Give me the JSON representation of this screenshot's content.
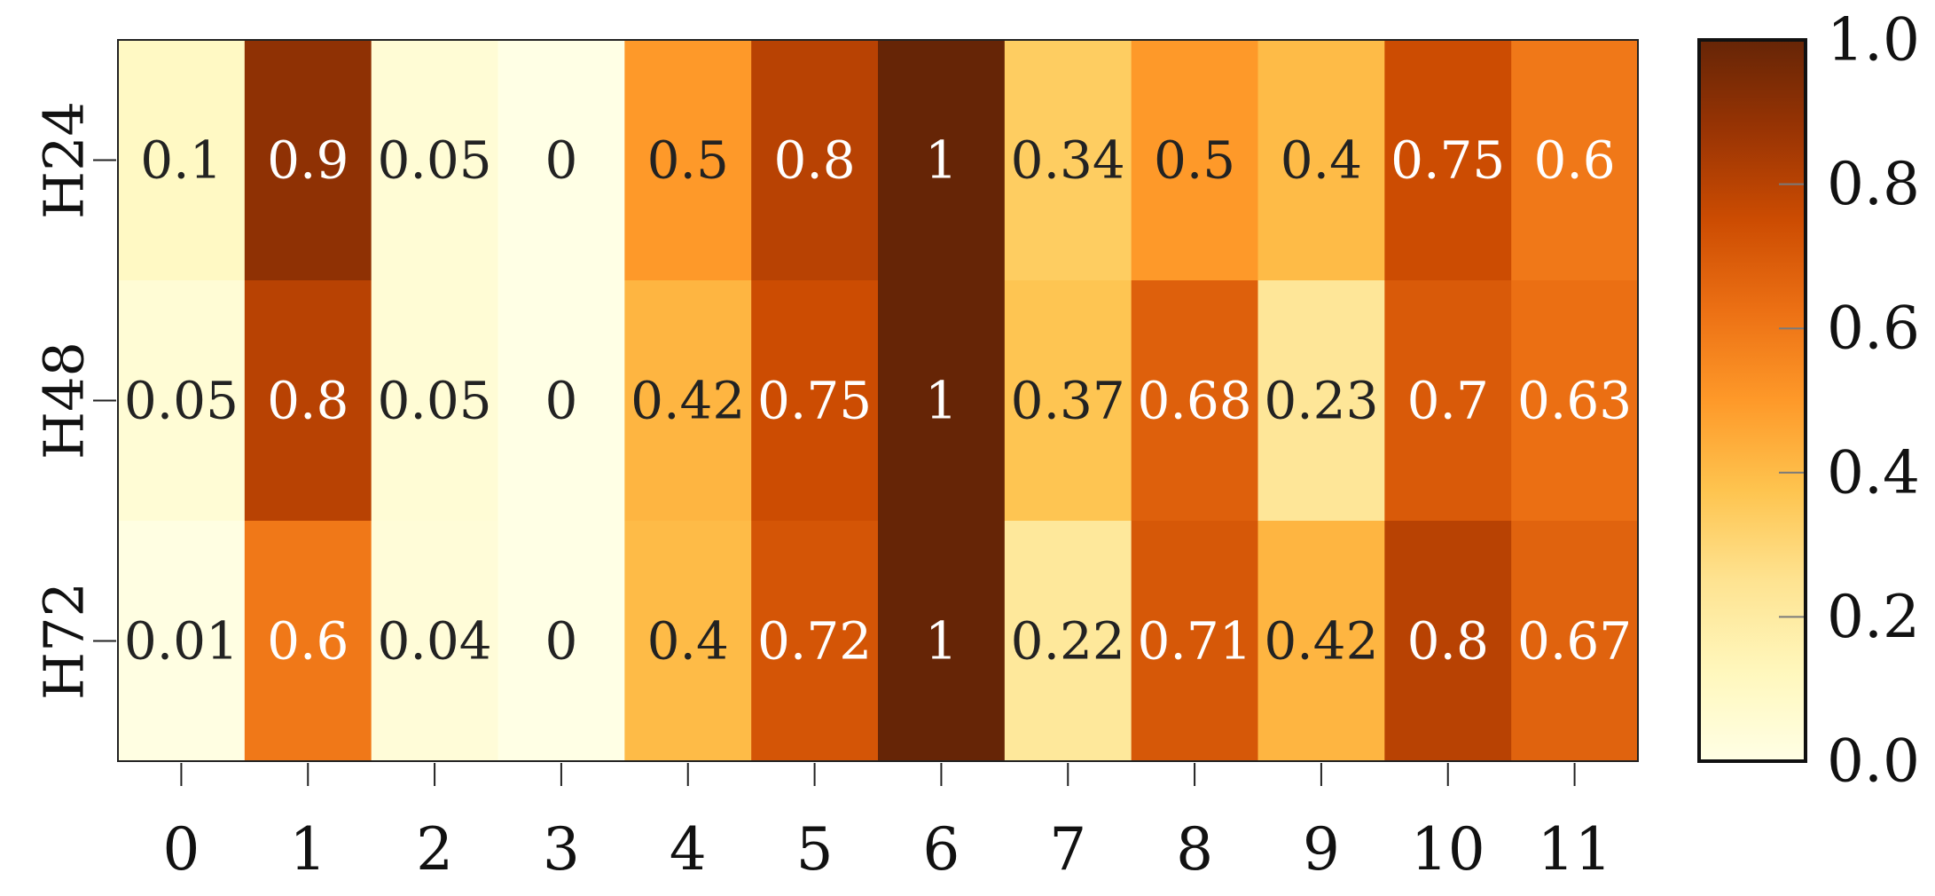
{
  "chart_data": {
    "type": "heatmap",
    "x_categories": [
      "0",
      "1",
      "2",
      "3",
      "4",
      "5",
      "6",
      "7",
      "8",
      "9",
      "10",
      "11"
    ],
    "y_categories": [
      "H24",
      "H48",
      "H72"
    ],
    "values": [
      [
        0.1,
        0.9,
        0.05,
        0,
        0.5,
        0.8,
        1,
        0.34,
        0.5,
        0.4,
        0.75,
        0.6
      ],
      [
        0.05,
        0.8,
        0.05,
        0,
        0.42,
        0.75,
        1,
        0.37,
        0.68,
        0.23,
        0.7,
        0.63
      ],
      [
        0.01,
        0.6,
        0.04,
        0,
        0.4,
        0.72,
        1,
        0.22,
        0.71,
        0.42,
        0.8,
        0.67
      ]
    ],
    "cell_labels": [
      [
        "0.1",
        "0.9",
        "0.05",
        "0",
        "0.5",
        "0.8",
        "1",
        "0.34",
        "0.5",
        "0.4",
        "0.75",
        "0.6"
      ],
      [
        "0.05",
        "0.8",
        "0.05",
        "0",
        "0.42",
        "0.75",
        "1",
        "0.37",
        "0.68",
        "0.23",
        "0.7",
        "0.63"
      ],
      [
        "0.01",
        "0.6",
        "0.04",
        "0",
        "0.4",
        "0.72",
        "1",
        "0.22",
        "0.71",
        "0.42",
        "0.8",
        "0.67"
      ]
    ],
    "title": "",
    "xlabel": "",
    "ylabel": "",
    "colorbar": {
      "range": [
        0.0,
        1.0
      ],
      "ticks": [
        0.0,
        0.2,
        0.4,
        0.6,
        0.8,
        1.0
      ],
      "tick_labels": [
        "0.0",
        "0.2",
        "0.4",
        "0.6",
        "0.8",
        "1.0"
      ],
      "placement": "right"
    },
    "colormap": [
      "#ffffe5",
      "#fff7bc",
      "#fee391",
      "#fec44f",
      "#fe9929",
      "#ec7014",
      "#cc4c02",
      "#993404",
      "#662506"
    ],
    "text_colors": {
      "dark": "#222222",
      "light": "#ffffff"
    },
    "light_text_threshold": 0.55
  }
}
